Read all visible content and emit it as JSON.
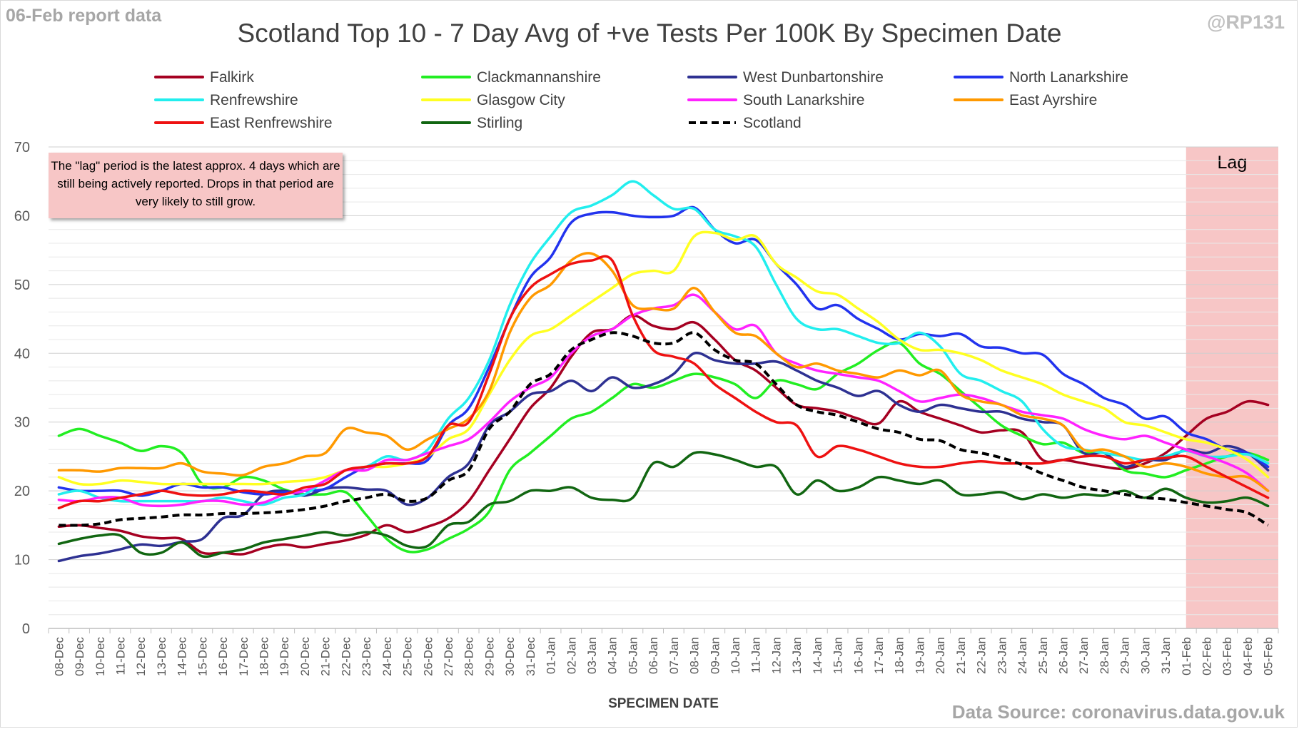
{
  "header": {
    "report_label": "06-Feb report data",
    "handle": "@RP131",
    "title": "Scotland Top 10 - 7 Day Avg of +ve Tests Per 100K By Specimen Date",
    "source": "Data Source: coronavirus.data.gov.uk"
  },
  "note": "The \"lag\" period is the latest approx. 4 days which are still being actively reported. Drops in that period are very likely to still grow.",
  "lag_label": "Lag",
  "chart_data": {
    "type": "line",
    "title": "Scotland Top 10 - 7 Day Avg of +ve Tests Per 100K By Specimen Date",
    "xlabel": "SPECIMEN DATE",
    "ylabel": "",
    "ylim": [
      0,
      70
    ],
    "yticks": [
      0,
      10,
      20,
      30,
      40,
      50,
      60,
      70
    ],
    "grid": true,
    "legend_position": "top",
    "lag_period": {
      "from": "01-Feb",
      "to": "05-Feb",
      "label": "Lag",
      "color": "#f7c6c6"
    },
    "categories": [
      "08-Dec",
      "09-Dec",
      "10-Dec",
      "11-Dec",
      "12-Dec",
      "13-Dec",
      "14-Dec",
      "15-Dec",
      "16-Dec",
      "17-Dec",
      "18-Dec",
      "19-Dec",
      "20-Dec",
      "21-Dec",
      "22-Dec",
      "23-Dec",
      "24-Dec",
      "25-Dec",
      "26-Dec",
      "27-Dec",
      "28-Dec",
      "29-Dec",
      "30-Dec",
      "31-Dec",
      "01-Jan",
      "02-Jan",
      "03-Jan",
      "04-Jan",
      "05-Jan",
      "06-Jan",
      "07-Jan",
      "08-Jan",
      "09-Jan",
      "10-Jan",
      "11-Jan",
      "12-Jan",
      "13-Jan",
      "14-Jan",
      "15-Jan",
      "16-Jan",
      "17-Jan",
      "18-Jan",
      "19-Jan",
      "20-Jan",
      "21-Jan",
      "22-Jan",
      "23-Jan",
      "24-Jan",
      "25-Jan",
      "26-Jan",
      "27-Jan",
      "28-Jan",
      "29-Jan",
      "30-Jan",
      "31-Jan",
      "01-Feb",
      "02-Feb",
      "03-Feb",
      "04-Feb",
      "05-Feb"
    ],
    "series": [
      {
        "name": "Falkirk",
        "color": "#a50021",
        "dashed": false,
        "values": [
          14.8,
          15.0,
          14.6,
          14.2,
          13.4,
          13.1,
          13.0,
          11.0,
          11.0,
          10.8,
          11.7,
          12.2,
          11.8,
          12.3,
          12.8,
          13.6,
          15.0,
          14.0,
          14.8,
          16.0,
          18.5,
          23.0,
          27.5,
          32.0,
          35.0,
          39.5,
          43.0,
          43.5,
          45.5,
          44.0,
          43.5,
          44.5,
          42.0,
          39.0,
          37.5,
          35.0,
          32.5,
          32.0,
          31.5,
          30.5,
          29.8,
          33.0,
          31.5,
          30.5,
          29.5,
          28.5,
          28.8,
          28.5,
          24.5,
          24.5,
          24.0,
          23.5,
          23.2,
          24.0,
          25.5,
          28.0,
          30.5,
          31.5,
          33.0,
          32.5
        ]
      },
      {
        "name": "Clackmannanshire",
        "color": "#22ee22",
        "dashed": false,
        "values": [
          28.0,
          29.0,
          28.0,
          27.0,
          25.8,
          26.5,
          25.5,
          21.0,
          20.5,
          22.0,
          21.5,
          20.2,
          19.5,
          19.5,
          19.8,
          16.5,
          13.0,
          11.2,
          11.5,
          13.0,
          14.5,
          17.0,
          23.0,
          25.5,
          28.0,
          30.5,
          31.5,
          33.5,
          35.5,
          35.0,
          36.0,
          37.0,
          36.5,
          35.5,
          33.5,
          36.0,
          35.5,
          34.8,
          37.0,
          38.5,
          40.5,
          41.5,
          38.5,
          37.0,
          34.5,
          32.0,
          29.5,
          28.0,
          26.8,
          27.0,
          25.5,
          25.5,
          23.0,
          22.5,
          22.0,
          23.0,
          24.0,
          25.0,
          25.5,
          24.5
        ]
      },
      {
        "name": "West Dunbartonshire",
        "color": "#2e3192",
        "dashed": false,
        "values": [
          9.8,
          10.5,
          10.9,
          11.5,
          12.2,
          12.0,
          12.6,
          13.0,
          16.0,
          16.5,
          19.5,
          20.0,
          19.3,
          20.3,
          20.5,
          20.2,
          20.0,
          18.0,
          19.0,
          22.0,
          24.0,
          29.5,
          31.5,
          34.0,
          34.5,
          36.0,
          34.5,
          36.5,
          35.0,
          35.5,
          37.0,
          40.0,
          39.0,
          38.5,
          38.5,
          38.8,
          37.5,
          36.0,
          35.0,
          33.8,
          34.5,
          32.5,
          31.5,
          32.5,
          32.0,
          31.5,
          31.5,
          30.5,
          30.0,
          29.5,
          25.5,
          25.5,
          23.5,
          24.5,
          24.5,
          26.0,
          25.5,
          26.5,
          25.5,
          23.0
        ]
      },
      {
        "name": "North Lanarkshire",
        "color": "#2233ee",
        "dashed": false,
        "values": [
          20.5,
          20.0,
          20.0,
          20.0,
          19.3,
          20.0,
          21.0,
          20.5,
          20.5,
          19.8,
          19.5,
          19.8,
          20.0,
          20.3,
          22.0,
          23.5,
          24.0,
          24.0,
          24.5,
          29.5,
          32.0,
          38.0,
          45.0,
          51.0,
          54.0,
          59.0,
          60.3,
          60.5,
          60.0,
          59.8,
          60.0,
          61.2,
          58.0,
          56.0,
          56.5,
          53.0,
          50.0,
          46.5,
          47.0,
          45.0,
          43.5,
          42.0,
          42.8,
          42.5,
          42.8,
          41.0,
          40.8,
          40.0,
          39.8,
          37.0,
          35.5,
          33.5,
          32.5,
          30.5,
          30.8,
          28.5,
          27.5,
          26.0,
          25.5,
          23.5
        ]
      },
      {
        "name": "Renfrewshire",
        "color": "#22eeee",
        "dashed": false,
        "values": [
          19.5,
          20.0,
          19.0,
          18.5,
          18.5,
          18.5,
          18.5,
          18.5,
          19.0,
          18.5,
          18.0,
          19.0,
          19.5,
          21.5,
          23.0,
          23.5,
          25.0,
          24.5,
          26.0,
          30.5,
          33.5,
          39.0,
          47.0,
          53.0,
          57.0,
          60.5,
          61.5,
          63.0,
          65.0,
          63.0,
          61.0,
          61.0,
          58.0,
          57.0,
          55.5,
          50.0,
          45.0,
          43.5,
          43.5,
          42.5,
          41.5,
          41.5,
          43.0,
          41.0,
          37.0,
          36.0,
          34.5,
          33.0,
          29.0,
          26.5,
          26.0,
          25.5,
          25.0,
          24.5,
          25.0,
          25.8,
          25.0,
          25.0,
          25.3,
          24.0
        ]
      },
      {
        "name": "Glasgow City",
        "color": "#ffff22",
        "dashed": false,
        "values": [
          22.0,
          21.0,
          21.0,
          21.5,
          21.3,
          21.0,
          21.0,
          21.0,
          21.0,
          21.0,
          21.0,
          21.3,
          21.5,
          22.0,
          23.0,
          23.5,
          23.5,
          24.0,
          25.0,
          27.5,
          29.0,
          34.0,
          39.0,
          42.5,
          43.5,
          45.5,
          47.5,
          49.5,
          51.5,
          52.0,
          52.0,
          57.0,
          57.5,
          56.5,
          57.0,
          53.0,
          51.0,
          49.0,
          48.5,
          46.5,
          44.5,
          42.0,
          40.5,
          40.5,
          40.0,
          39.0,
          37.5,
          36.5,
          35.5,
          34.0,
          33.0,
          32.0,
          30.0,
          29.5,
          28.5,
          27.5,
          27.0,
          26.0,
          24.5,
          22.0
        ]
      },
      {
        "name": "South Lanarkshire",
        "color": "#ff22ff",
        "dashed": false,
        "values": [
          18.7,
          18.5,
          19.0,
          19.0,
          18.0,
          17.8,
          18.0,
          18.5,
          18.5,
          18.0,
          18.3,
          19.5,
          20.0,
          21.5,
          23.0,
          23.0,
          24.5,
          24.5,
          25.5,
          26.5,
          27.5,
          30.0,
          33.0,
          35.0,
          36.5,
          40.0,
          42.5,
          43.5,
          45.5,
          46.5,
          47.0,
          48.5,
          46.0,
          43.5,
          44.0,
          40.0,
          38.5,
          37.5,
          37.0,
          36.5,
          36.0,
          34.5,
          33.0,
          33.5,
          34.0,
          33.5,
          32.5,
          31.5,
          31.0,
          30.5,
          29.0,
          28.0,
          27.5,
          28.0,
          27.0,
          26.0,
          25.0,
          24.0,
          22.5,
          20.0
        ]
      },
      {
        "name": "East Ayrshire",
        "color": "#ff9900",
        "dashed": false,
        "values": [
          23.0,
          23.0,
          22.8,
          23.3,
          23.3,
          23.3,
          24.0,
          22.8,
          22.5,
          22.3,
          23.5,
          24.0,
          25.0,
          25.5,
          29.0,
          28.5,
          28.0,
          26.0,
          27.5,
          29.0,
          30.5,
          34.5,
          43.0,
          48.0,
          50.0,
          53.5,
          54.5,
          52.0,
          47.0,
          46.5,
          46.5,
          49.5,
          46.0,
          43.0,
          42.5,
          40.0,
          38.0,
          38.5,
          37.5,
          37.0,
          36.5,
          37.5,
          36.8,
          37.5,
          34.0,
          33.0,
          32.5,
          31.0,
          30.5,
          29.5,
          26.0,
          26.0,
          25.0,
          23.5,
          24.0,
          23.5,
          22.5,
          22.0,
          22.0,
          20.0
        ]
      },
      {
        "name": "East Renfrewshire",
        "color": "#ee1111",
        "dashed": false,
        "values": [
          17.5,
          18.5,
          18.5,
          19.0,
          19.5,
          20.0,
          19.5,
          19.3,
          19.5,
          20.0,
          19.8,
          19.5,
          20.5,
          21.0,
          23.0,
          23.5,
          24.0,
          24.0,
          25.0,
          29.5,
          30.0,
          37.0,
          45.0,
          49.5,
          51.5,
          53.0,
          53.5,
          53.5,
          45.5,
          40.5,
          39.5,
          38.5,
          35.5,
          33.5,
          31.5,
          30.0,
          29.5,
          25.0,
          26.5,
          26.0,
          25.0,
          24.0,
          23.5,
          23.5,
          24.0,
          24.3,
          24.0,
          24.0,
          24.0,
          24.5,
          25.0,
          25.0,
          24.0,
          24.5,
          24.8,
          25.0,
          23.5,
          22.0,
          20.5,
          19.0
        ]
      },
      {
        "name": "Stirling",
        "color": "#116611",
        "dashed": false,
        "values": [
          12.3,
          13.0,
          13.5,
          13.5,
          11.0,
          11.0,
          12.5,
          10.5,
          11.0,
          11.5,
          12.5,
          13.0,
          13.5,
          14.0,
          13.5,
          14.0,
          13.5,
          12.0,
          12.0,
          15.0,
          15.5,
          18.0,
          18.5,
          20.0,
          20.0,
          20.5,
          19.0,
          18.7,
          19.0,
          24.0,
          23.5,
          25.5,
          25.3,
          24.5,
          23.5,
          23.5,
          19.5,
          21.5,
          20.0,
          20.5,
          22.0,
          21.5,
          21.0,
          21.5,
          19.5,
          19.5,
          19.8,
          18.8,
          19.5,
          19.0,
          19.5,
          19.3,
          20.0,
          19.0,
          20.3,
          19.0,
          18.3,
          18.5,
          19.0,
          17.8
        ]
      },
      {
        "name": "Scotland",
        "color": "#000000",
        "dashed": true,
        "values": [
          15.0,
          15.0,
          15.2,
          15.8,
          16.0,
          16.2,
          16.5,
          16.5,
          16.7,
          16.7,
          16.8,
          17.0,
          17.3,
          17.8,
          18.5,
          19.0,
          19.5,
          18.5,
          19.0,
          21.5,
          23.0,
          29.0,
          31.5,
          35.5,
          37.0,
          40.5,
          42.0,
          43.0,
          42.5,
          41.5,
          41.5,
          43.0,
          40.5,
          39.0,
          38.5,
          35.5,
          32.5,
          31.5,
          31.0,
          30.0,
          29.0,
          28.5,
          27.5,
          27.3,
          26.0,
          25.5,
          24.8,
          23.8,
          22.5,
          21.5,
          20.5,
          20.0,
          19.5,
          19.0,
          18.8,
          18.3,
          17.8,
          17.3,
          16.8,
          15.0
        ]
      }
    ]
  }
}
